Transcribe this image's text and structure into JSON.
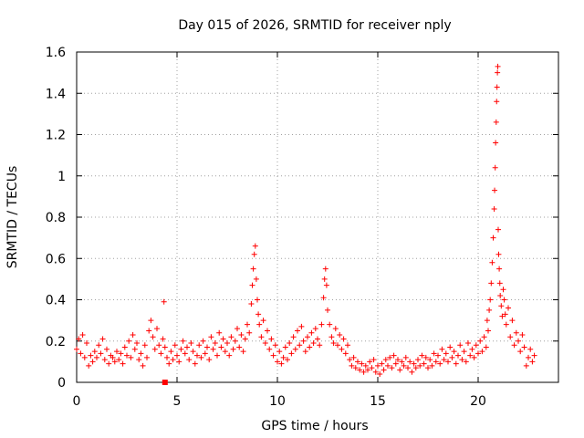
{
  "chart_data": {
    "type": "scatter",
    "title": "Day 015 of 2026, SRMTID for receiver nply",
    "xlabel": "GPS time / hours",
    "ylabel": "SRMTID / TECUs",
    "xlim": [
      0,
      24
    ],
    "ylim": [
      0,
      1.6
    ],
    "xticks": [
      0,
      5,
      10,
      15,
      20
    ],
    "xtick_labels": [
      "0",
      "5",
      "10",
      "15",
      "20"
    ],
    "yticks": [
      0,
      0.2,
      0.4,
      0.6,
      0.8,
      1.0,
      1.2,
      1.4,
      1.6
    ],
    "ytick_labels": [
      "0",
      "0.2",
      "0.4",
      "0.6",
      "0.8",
      "1",
      "1.2",
      "1.4",
      "1.6"
    ],
    "grid": true,
    "marker": "+",
    "series": [
      {
        "name": "SRMTID",
        "color": "#ff0000",
        "points": [
          [
            0.0,
            0.16
          ],
          [
            0.1,
            0.21
          ],
          [
            0.2,
            0.14
          ],
          [
            0.3,
            0.23
          ],
          [
            0.4,
            0.12
          ],
          [
            0.5,
            0.19
          ],
          [
            0.6,
            0.08
          ],
          [
            0.7,
            0.13
          ],
          [
            0.8,
            0.1
          ],
          [
            0.9,
            0.15
          ],
          [
            1.0,
            0.12
          ],
          [
            1.1,
            0.18
          ],
          [
            1.2,
            0.14
          ],
          [
            1.3,
            0.21
          ],
          [
            1.4,
            0.11
          ],
          [
            1.5,
            0.16
          ],
          [
            1.6,
            0.09
          ],
          [
            1.7,
            0.13
          ],
          [
            1.8,
            0.12
          ],
          [
            1.9,
            0.1
          ],
          [
            2.0,
            0.15
          ],
          [
            2.1,
            0.11
          ],
          [
            2.2,
            0.14
          ],
          [
            2.3,
            0.09
          ],
          [
            2.4,
            0.17
          ],
          [
            2.5,
            0.13
          ],
          [
            2.6,
            0.2
          ],
          [
            2.7,
            0.12
          ],
          [
            2.8,
            0.23
          ],
          [
            2.9,
            0.16
          ],
          [
            3.0,
            0.19
          ],
          [
            3.1,
            0.11
          ],
          [
            3.2,
            0.14
          ],
          [
            3.3,
            0.08
          ],
          [
            3.4,
            0.18
          ],
          [
            3.5,
            0.12
          ],
          [
            3.6,
            0.25
          ],
          [
            3.7,
            0.3
          ],
          [
            3.8,
            0.22
          ],
          [
            3.9,
            0.16
          ],
          [
            4.0,
            0.26
          ],
          [
            4.1,
            0.18
          ],
          [
            4.2,
            0.14
          ],
          [
            4.3,
            0.21
          ],
          [
            4.35,
            0.39
          ],
          [
            4.4,
            0.17
          ],
          [
            4.5,
            0.12
          ],
          [
            4.6,
            0.09
          ],
          [
            4.7,
            0.15
          ],
          [
            4.8,
            0.11
          ],
          [
            4.9,
            0.18
          ],
          [
            5.0,
            0.13
          ],
          [
            5.1,
            0.1
          ],
          [
            5.2,
            0.16
          ],
          [
            5.3,
            0.2
          ],
          [
            5.4,
            0.14
          ],
          [
            5.5,
            0.17
          ],
          [
            5.6,
            0.11
          ],
          [
            5.7,
            0.19
          ],
          [
            5.8,
            0.15
          ],
          [
            5.9,
            0.09
          ],
          [
            6.0,
            0.13
          ],
          [
            6.1,
            0.18
          ],
          [
            6.2,
            0.12
          ],
          [
            6.3,
            0.2
          ],
          [
            6.4,
            0.14
          ],
          [
            6.5,
            0.17
          ],
          [
            6.6,
            0.11
          ],
          [
            6.7,
            0.22
          ],
          [
            6.8,
            0.16
          ],
          [
            6.9,
            0.19
          ],
          [
            7.0,
            0.13
          ],
          [
            7.1,
            0.24
          ],
          [
            7.2,
            0.17
          ],
          [
            7.3,
            0.21
          ],
          [
            7.4,
            0.15
          ],
          [
            7.5,
            0.19
          ],
          [
            7.6,
            0.13
          ],
          [
            7.7,
            0.22
          ],
          [
            7.8,
            0.16
          ],
          [
            7.9,
            0.2
          ],
          [
            8.0,
            0.26
          ],
          [
            8.1,
            0.17
          ],
          [
            8.2,
            0.23
          ],
          [
            8.3,
            0.15
          ],
          [
            8.4,
            0.21
          ],
          [
            8.5,
            0.28
          ],
          [
            8.6,
            0.24
          ],
          [
            8.7,
            0.38
          ],
          [
            8.75,
            0.47
          ],
          [
            8.8,
            0.55
          ],
          [
            8.85,
            0.62
          ],
          [
            8.9,
            0.66
          ],
          [
            8.95,
            0.5
          ],
          [
            9.0,
            0.4
          ],
          [
            9.05,
            0.33
          ],
          [
            9.1,
            0.28
          ],
          [
            9.2,
            0.22
          ],
          [
            9.3,
            0.3
          ],
          [
            9.4,
            0.19
          ],
          [
            9.5,
            0.25
          ],
          [
            9.6,
            0.16
          ],
          [
            9.7,
            0.21
          ],
          [
            9.8,
            0.13
          ],
          [
            9.9,
            0.18
          ],
          [
            10.0,
            0.1
          ],
          [
            10.1,
            0.15
          ],
          [
            10.2,
            0.09
          ],
          [
            10.3,
            0.12
          ],
          [
            10.4,
            0.17
          ],
          [
            10.5,
            0.11
          ],
          [
            10.6,
            0.19
          ],
          [
            10.7,
            0.14
          ],
          [
            10.8,
            0.22
          ],
          [
            10.9,
            0.16
          ],
          [
            11.0,
            0.25
          ],
          [
            11.1,
            0.18
          ],
          [
            11.2,
            0.27
          ],
          [
            11.3,
            0.2
          ],
          [
            11.4,
            0.15
          ],
          [
            11.5,
            0.22
          ],
          [
            11.6,
            0.17
          ],
          [
            11.7,
            0.24
          ],
          [
            11.8,
            0.19
          ],
          [
            11.9,
            0.26
          ],
          [
            12.0,
            0.21
          ],
          [
            12.1,
            0.18
          ],
          [
            12.2,
            0.28
          ],
          [
            12.3,
            0.41
          ],
          [
            12.35,
            0.5
          ],
          [
            12.4,
            0.55
          ],
          [
            12.45,
            0.47
          ],
          [
            12.5,
            0.35
          ],
          [
            12.6,
            0.28
          ],
          [
            12.7,
            0.22
          ],
          [
            12.8,
            0.19
          ],
          [
            12.9,
            0.26
          ],
          [
            13.0,
            0.18
          ],
          [
            13.1,
            0.23
          ],
          [
            13.2,
            0.16
          ],
          [
            13.3,
            0.21
          ],
          [
            13.4,
            0.14
          ],
          [
            13.5,
            0.18
          ],
          [
            13.6,
            0.11
          ],
          [
            13.7,
            0.08
          ],
          [
            13.8,
            0.12
          ],
          [
            13.9,
            0.07
          ],
          [
            14.0,
            0.1
          ],
          [
            14.1,
            0.06
          ],
          [
            14.2,
            0.09
          ],
          [
            14.3,
            0.05
          ],
          [
            14.4,
            0.08
          ],
          [
            14.5,
            0.06
          ],
          [
            14.6,
            0.1
          ],
          [
            14.7,
            0.07
          ],
          [
            14.8,
            0.11
          ],
          [
            14.9,
            0.05
          ],
          [
            15.0,
            0.08
          ],
          [
            15.1,
            0.04
          ],
          [
            15.2,
            0.09
          ],
          [
            15.3,
            0.06
          ],
          [
            15.4,
            0.11
          ],
          [
            15.5,
            0.08
          ],
          [
            15.6,
            0.12
          ],
          [
            15.7,
            0.07
          ],
          [
            15.8,
            0.13
          ],
          [
            15.9,
            0.09
          ],
          [
            16.0,
            0.11
          ],
          [
            16.1,
            0.06
          ],
          [
            16.2,
            0.1
          ],
          [
            16.3,
            0.08
          ],
          [
            16.4,
            0.12
          ],
          [
            16.5,
            0.07
          ],
          [
            16.6,
            0.1
          ],
          [
            16.7,
            0.05
          ],
          [
            16.8,
            0.09
          ],
          [
            16.9,
            0.07
          ],
          [
            17.0,
            0.11
          ],
          [
            17.1,
            0.08
          ],
          [
            17.2,
            0.13
          ],
          [
            17.3,
            0.09
          ],
          [
            17.4,
            0.12
          ],
          [
            17.5,
            0.07
          ],
          [
            17.6,
            0.11
          ],
          [
            17.7,
            0.08
          ],
          [
            17.8,
            0.14
          ],
          [
            17.9,
            0.1
          ],
          [
            18.0,
            0.13
          ],
          [
            18.1,
            0.09
          ],
          [
            18.2,
            0.16
          ],
          [
            18.3,
            0.11
          ],
          [
            18.4,
            0.14
          ],
          [
            18.5,
            0.1
          ],
          [
            18.6,
            0.17
          ],
          [
            18.7,
            0.12
          ],
          [
            18.8,
            0.15
          ],
          [
            18.9,
            0.09
          ],
          [
            19.0,
            0.13
          ],
          [
            19.1,
            0.18
          ],
          [
            19.2,
            0.11
          ],
          [
            19.3,
            0.15
          ],
          [
            19.4,
            0.1
          ],
          [
            19.5,
            0.19
          ],
          [
            19.6,
            0.13
          ],
          [
            19.7,
            0.16
          ],
          [
            19.8,
            0.12
          ],
          [
            19.9,
            0.18
          ],
          [
            20.0,
            0.14
          ],
          [
            20.1,
            0.2
          ],
          [
            20.2,
            0.15
          ],
          [
            20.3,
            0.22
          ],
          [
            20.4,
            0.17
          ],
          [
            20.45,
            0.3
          ],
          [
            20.5,
            0.25
          ],
          [
            20.55,
            0.35
          ],
          [
            20.6,
            0.4
          ],
          [
            20.65,
            0.48
          ],
          [
            20.7,
            0.58
          ],
          [
            20.75,
            0.7
          ],
          [
            20.8,
            0.84
          ],
          [
            20.82,
            0.93
          ],
          [
            20.85,
            1.04
          ],
          [
            20.87,
            1.16
          ],
          [
            20.9,
            1.26
          ],
          [
            20.92,
            1.36
          ],
          [
            20.94,
            1.43
          ],
          [
            20.96,
            1.5
          ],
          [
            20.98,
            1.53
          ],
          [
            21.0,
            0.74
          ],
          [
            21.02,
            0.62
          ],
          [
            21.05,
            0.55
          ],
          [
            21.08,
            0.48
          ],
          [
            21.1,
            0.42
          ],
          [
            21.15,
            0.37
          ],
          [
            21.2,
            0.32
          ],
          [
            21.25,
            0.45
          ],
          [
            21.3,
            0.4
          ],
          [
            21.35,
            0.33
          ],
          [
            21.4,
            0.28
          ],
          [
            21.5,
            0.36
          ],
          [
            21.6,
            0.22
          ],
          [
            21.7,
            0.3
          ],
          [
            21.8,
            0.18
          ],
          [
            21.9,
            0.24
          ],
          [
            22.0,
            0.2
          ],
          [
            22.1,
            0.15
          ],
          [
            22.2,
            0.23
          ],
          [
            22.3,
            0.17
          ],
          [
            22.4,
            0.08
          ],
          [
            22.5,
            0.12
          ],
          [
            22.6,
            0.16
          ],
          [
            22.7,
            0.1
          ],
          [
            22.8,
            0.13
          ]
        ]
      }
    ],
    "extra_marks": [
      {
        "name": "outlier-square",
        "x": 4.4,
        "y": 0.0,
        "marker": "square"
      }
    ]
  }
}
